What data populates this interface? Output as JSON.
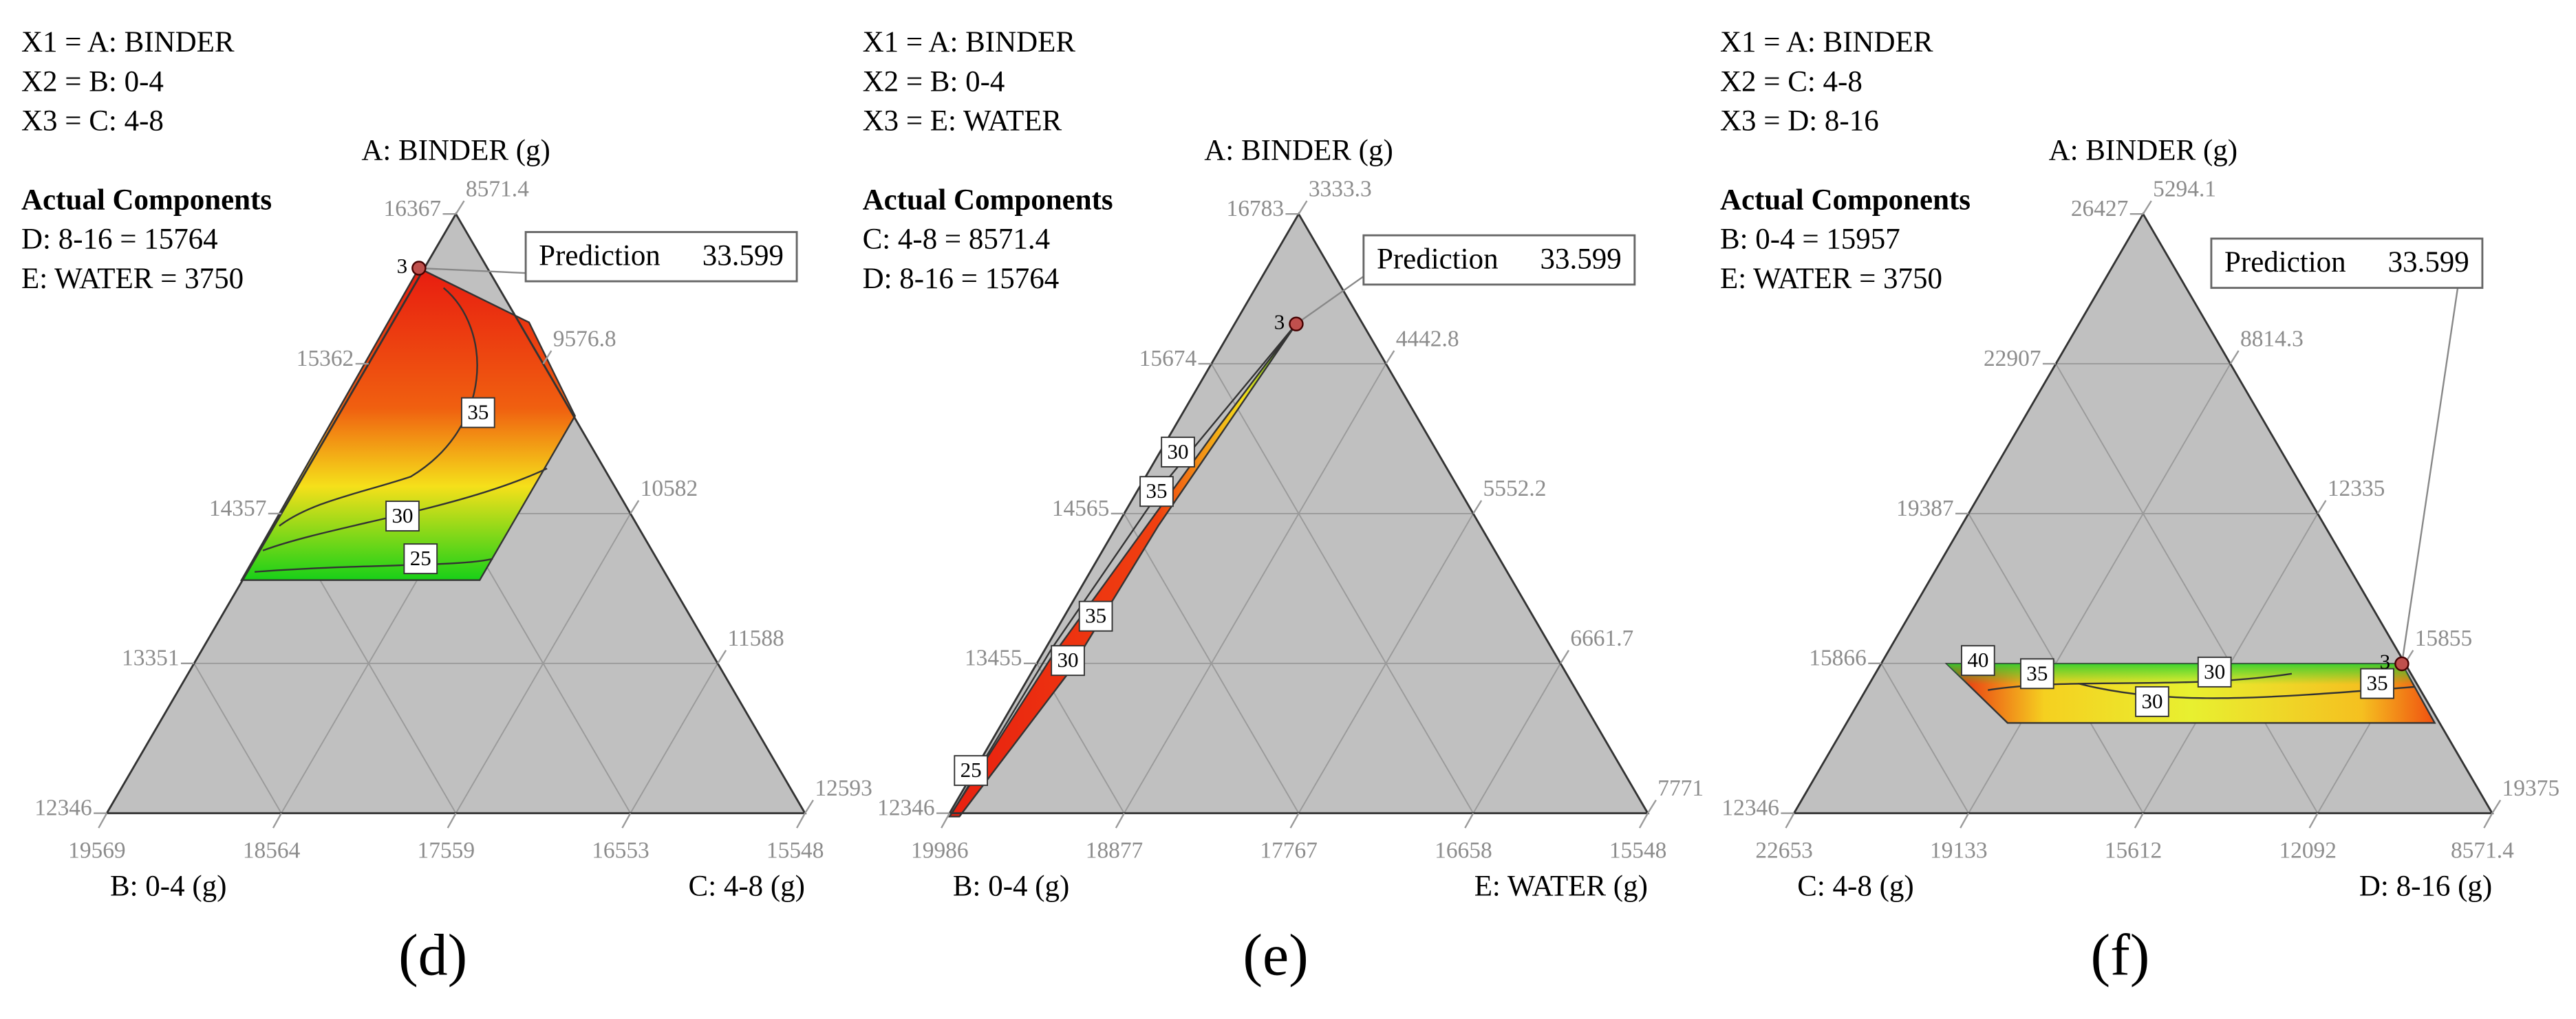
{
  "chart_data": [
    {
      "type": "ternary",
      "factors": [
        "X1 = A: BINDER",
        "X2 = B: 0-4",
        "X3 = C: 4-8"
      ],
      "components_title": "Actual Components",
      "components": [
        "D: 8-16 = 15764",
        "E: WATER = 3750"
      ],
      "top_axis": "A: BINDER (g)",
      "left_axis": "B: 0-4 (g)",
      "right_axis": "C: 4-8 (g)",
      "left_ticks": [
        16367,
        15362,
        14357,
        13351,
        12346
      ],
      "right_ticks": [
        8571.4,
        9576.8,
        10582,
        11588,
        12593
      ],
      "bottom_ticks": [
        19569,
        18564,
        17559,
        16553,
        15548
      ],
      "prediction_label": "Prediction",
      "prediction": 33.599,
      "design_point_label": "3",
      "contour_labels": [
        35,
        30,
        25
      ],
      "panel_label": "(d)"
    },
    {
      "type": "ternary",
      "factors": [
        "X1 = A: BINDER",
        "X2 = B: 0-4",
        "X3 = E: WATER"
      ],
      "components_title": "Actual Components",
      "components": [
        "C: 4-8 = 8571.4",
        "D: 8-16 = 15764"
      ],
      "top_axis": "A: BINDER (g)",
      "left_axis": "B: 0-4 (g)",
      "right_axis": "E: WATER (g)",
      "left_ticks": [
        16783,
        15674,
        14565,
        13455,
        12346
      ],
      "right_ticks": [
        3333.3,
        4442.8,
        5552.2,
        6661.7,
        7771
      ],
      "bottom_ticks": [
        19986,
        18877,
        17767,
        16658,
        15548
      ],
      "prediction_label": "Prediction",
      "prediction": 33.599,
      "design_point_label": "3",
      "contour_labels": [
        30,
        35,
        35,
        30,
        25
      ],
      "panel_label": "(e)"
    },
    {
      "type": "ternary",
      "factors": [
        "X1 = A: BINDER",
        "X2 = C: 4-8",
        "X3 = D: 8-16"
      ],
      "components_title": "Actual Components",
      "components": [
        "B: 0-4 = 15957",
        "E: WATER = 3750"
      ],
      "top_axis": "A: BINDER (g)",
      "left_axis": "C: 4-8 (g)",
      "right_axis": "D: 8-16 (g)",
      "left_ticks": [
        26427,
        22907,
        19387,
        15866,
        12346
      ],
      "right_ticks": [
        5294.1,
        8814.3,
        12335,
        15855,
        19375
      ],
      "bottom_ticks": [
        22653,
        19133,
        15612,
        12092,
        8571.4
      ],
      "prediction_label": "Prediction",
      "prediction": 33.599,
      "design_point_label": "3",
      "contour_labels": [
        40,
        35,
        30,
        30,
        35
      ],
      "panel_label": "(f)"
    }
  ]
}
